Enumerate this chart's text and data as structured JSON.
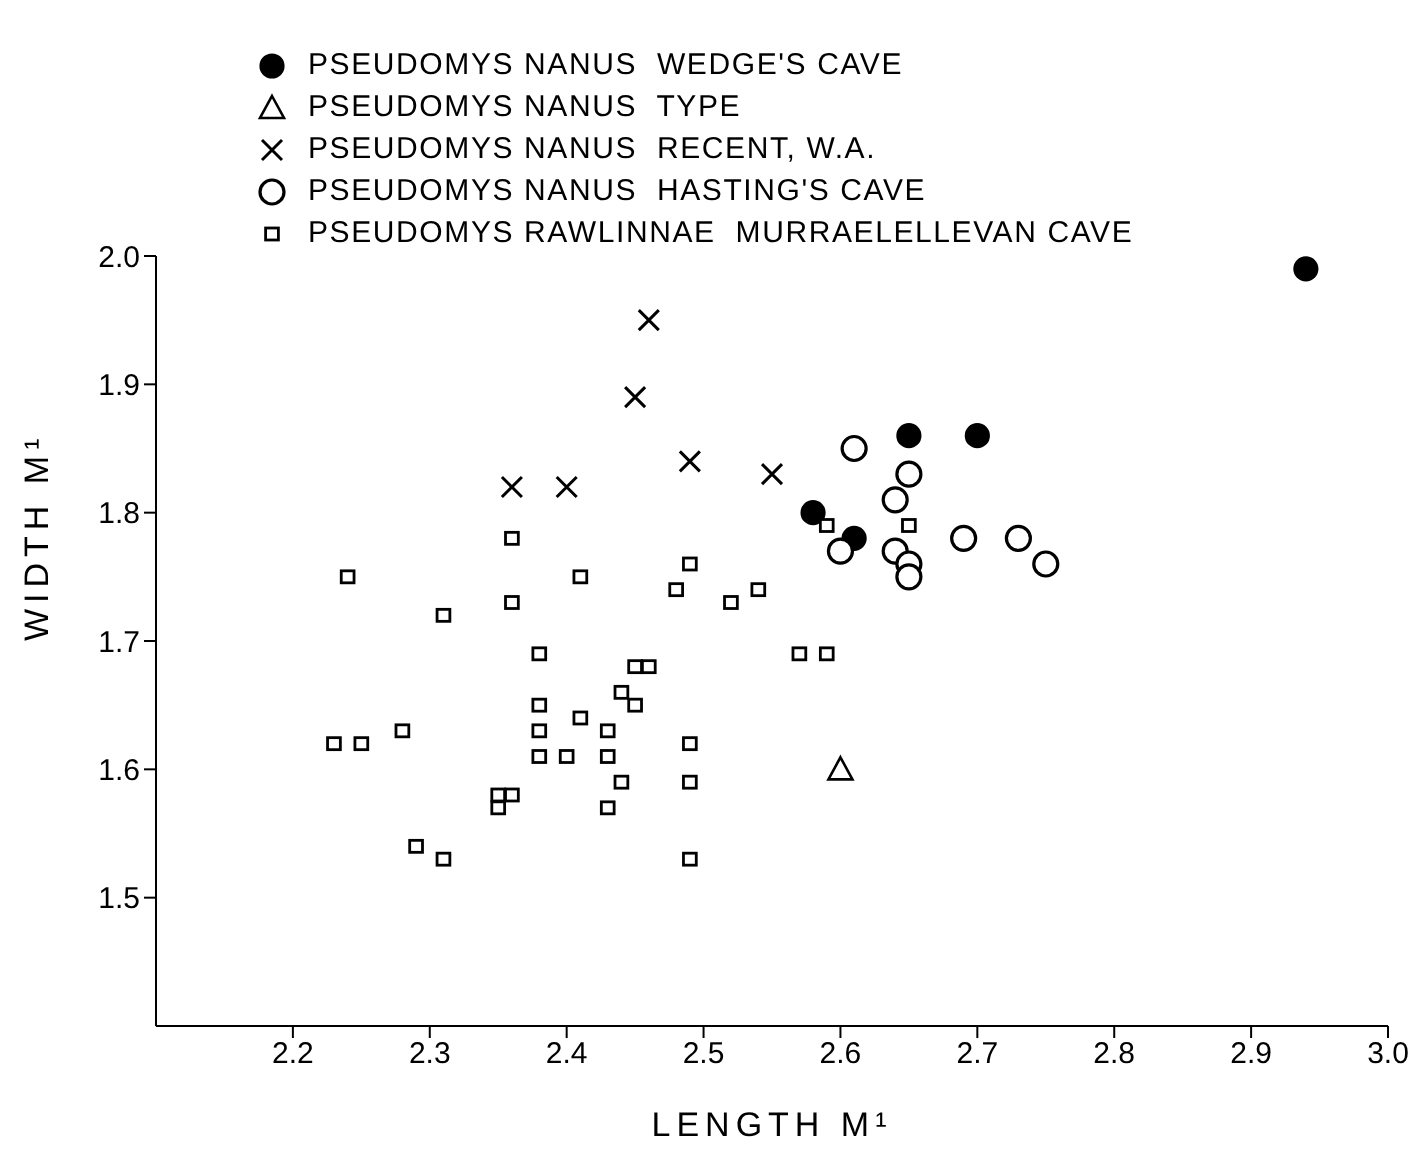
{
  "chart_data": {
    "type": "scatter",
    "xlabel": "LENGTH M¹",
    "ylabel": "WIDTH M¹",
    "xlim": [
      2.1,
      3.0
    ],
    "xticks": [
      2.2,
      2.3,
      2.4,
      2.5,
      2.6,
      2.7,
      2.8,
      2.9,
      {
        "value": 3.0,
        "label": "3.0"
      }
    ],
    "ylim": [
      1.4,
      2.0
    ],
    "yticks": [
      1.5,
      1.6,
      1.7,
      1.8,
      1.9,
      {
        "value": 2.0,
        "label": "2.0"
      }
    ],
    "grid": false,
    "legend": "top",
    "series": [
      {
        "name": "PSEUDOMYS NANUS  WEDGE'S CAVE",
        "color": "#000000",
        "marker": "circle",
        "x": [
          2.58,
          2.61,
          2.65,
          2.7,
          2.94
        ],
        "values": [
          1.8,
          1.78,
          1.86,
          1.86,
          1.99
        ]
      },
      {
        "name": "PSEUDOMYS NANUS  TYPE",
        "color": "#000000",
        "marker": "triangle",
        "x": [
          2.6
        ],
        "values": [
          1.6
        ]
      },
      {
        "name": "PSEUDOMYS NANUS  RECENT, W.A.",
        "color": "#000000",
        "marker": "cross",
        "x": [
          2.36,
          2.4,
          2.45,
          2.46,
          2.49,
          2.55
        ],
        "values": [
          1.82,
          1.82,
          1.89,
          1.95,
          1.84,
          1.83
        ]
      },
      {
        "name": "PSEUDOMYS NANUS  HASTING'S CAVE",
        "color": "#000000",
        "marker": "circle",
        "x": [
          2.61,
          2.65,
          2.64,
          2.6,
          2.64,
          2.65,
          2.65,
          2.69,
          2.73,
          2.75
        ],
        "values": [
          1.85,
          1.83,
          1.81,
          1.77,
          1.77,
          1.76,
          1.75,
          1.78,
          1.78,
          1.76
        ]
      },
      {
        "name": "PSEUDOMYS RAWLINNAE  MURRAELELLEVAN CAVE",
        "color": "#000000",
        "marker": "square",
        "x": [
          2.59,
          2.65,
          2.52,
          2.54,
          2.57,
          2.59,
          2.24,
          2.31,
          2.36,
          2.36,
          2.41,
          2.48,
          2.49,
          2.38,
          2.45,
          2.46,
          2.44,
          2.45,
          2.38,
          2.41,
          2.38,
          2.43,
          2.23,
          2.25,
          2.28,
          2.38,
          2.4,
          2.43,
          2.49,
          2.44,
          2.49,
          2.35,
          2.36,
          2.35,
          2.43,
          2.29,
          2.31,
          2.49
        ],
        "values": [
          1.79,
          1.79,
          1.73,
          1.74,
          1.69,
          1.69,
          1.75,
          1.72,
          1.78,
          1.73,
          1.75,
          1.74,
          1.76,
          1.69,
          1.68,
          1.68,
          1.66,
          1.65,
          1.65,
          1.64,
          1.63,
          1.63,
          1.62,
          1.62,
          1.63,
          1.61,
          1.61,
          1.61,
          1.62,
          1.59,
          1.59,
          1.58,
          1.58,
          1.57,
          1.57,
          1.54,
          1.53,
          1.53
        ]
      }
    ]
  }
}
